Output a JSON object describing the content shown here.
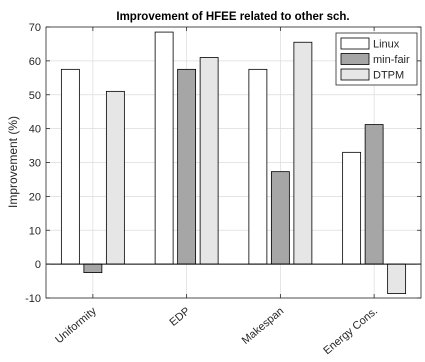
{
  "chart_data": {
    "type": "bar",
    "title": "Improvement of HFEE related to other sch.",
    "xlabel": "",
    "ylabel": "Improvement (%)",
    "ylim": [
      -10,
      70
    ],
    "yticks": [
      -10,
      0,
      10,
      20,
      30,
      40,
      50,
      60,
      70
    ],
    "categories": [
      "Uniformity",
      "EDP",
      "Makespan",
      "Energy Cons."
    ],
    "grid": true,
    "legend_position": "top-right",
    "series": [
      {
        "name": "Linux",
        "color": "#ffffff",
        "values": [
          57.5,
          68.5,
          57.5,
          33
        ]
      },
      {
        "name": "min-fair",
        "color": "#a6a6a6",
        "values": [
          -2.5,
          57.5,
          27.3,
          41.2
        ]
      },
      {
        "name": "DTPM",
        "color": "#e6e6e6",
        "values": [
          51,
          61,
          65.5,
          -8.7
        ]
      }
    ]
  }
}
